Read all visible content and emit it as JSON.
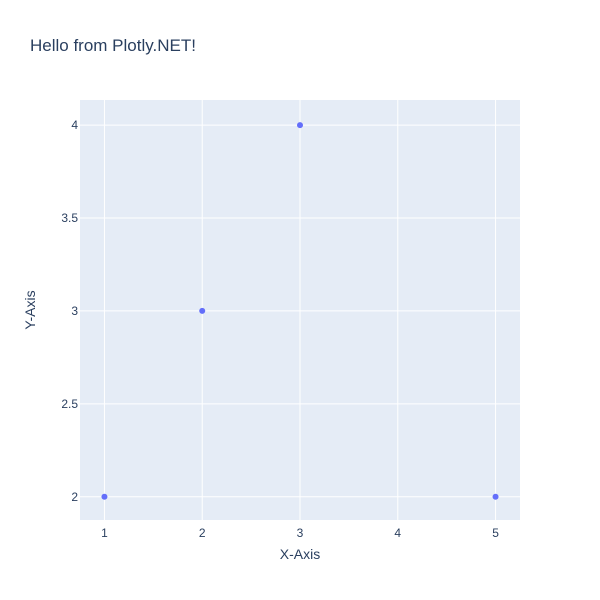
{
  "chart_data": {
    "type": "scatter",
    "title": "Hello from Plotly.NET!",
    "xlabel": "X-Axis",
    "ylabel": "Y-Axis",
    "xlim": [
      0.75,
      5.25
    ],
    "ylim": [
      1.875,
      4.135
    ],
    "x_ticks": [
      1,
      2,
      3,
      4,
      5
    ],
    "x_tick_labels": [
      "1",
      "2",
      "3",
      "4",
      "5"
    ],
    "y_ticks": [
      2,
      2.5,
      3,
      3.5,
      4
    ],
    "y_tick_labels": [
      "2",
      "2.5",
      "3",
      "3.5",
      "4"
    ],
    "grid": true,
    "series": [
      {
        "x": [
          1,
          2,
          3,
          5
        ],
        "y": [
          2,
          3,
          4,
          2
        ],
        "color": "#636efa"
      }
    ],
    "plot_background": "#e5ecf6",
    "text_color": "#2a3f5f"
  }
}
